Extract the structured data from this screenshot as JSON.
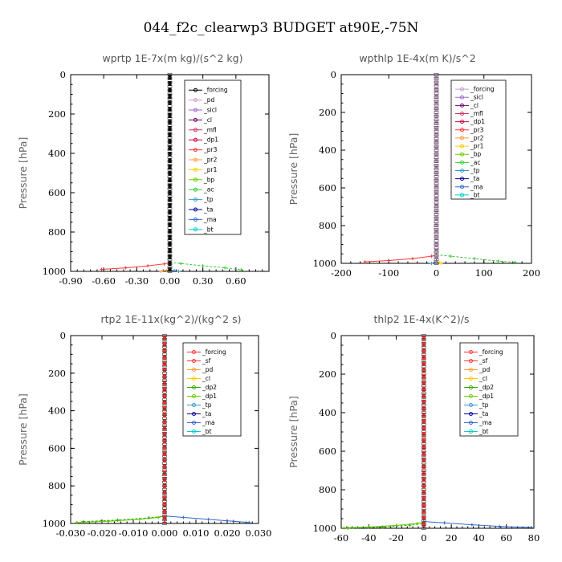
{
  "figure_title": "044_f2c_clearwp3  BUDGET at90E,-75N",
  "chart_data": [
    {
      "type": "line",
      "title": "wprtp   1E-7x(m kg)/(s^2 kg)",
      "ylabel": "Pressure [hPa]",
      "xlim": [
        -0.9,
        0.9
      ],
      "ylim": [
        1000,
        0
      ],
      "xticks": [
        -0.9,
        -0.6,
        -0.3,
        0.0,
        0.3,
        0.6
      ],
      "xtick_labels": [
        "-0.90",
        "-0.60",
        "-0.30",
        "0.00",
        "0.30",
        "0.60"
      ],
      "yticks": [
        0,
        200,
        400,
        600,
        800,
        1000
      ],
      "legend": [
        "_forcing",
        "_pd",
        "_sicl",
        "_cl",
        "_mfl",
        "_dp1",
        "_pr3",
        "_pr2",
        "_pr1",
        "_bp",
        "_ac",
        "_tp",
        "_ta",
        "_ma",
        "_bt"
      ],
      "legend_colors": [
        "#000000",
        "#cc99cc",
        "#9966cc",
        "#660066",
        "#cc3366",
        "#cc0033",
        "#ff3333",
        "#ff9933",
        "#ffcc00",
        "#66cc00",
        "#33cc33",
        "#3399cc",
        "#000099",
        "#3366cc",
        "#00cccc"
      ],
      "series": [
        {
          "name": "_dp1",
          "color": "#ff3333",
          "x": [
            -0.62,
            -0.4,
            -0.2,
            -0.05,
            0.0
          ],
          "y": [
            990,
            982,
            972,
            962,
            955
          ]
        },
        {
          "name": "_ac",
          "color": "#33cc33",
          "x": [
            0.0,
            0.1,
            0.3,
            0.5,
            0.65
          ],
          "y": [
            955,
            960,
            972,
            982,
            992
          ]
        },
        {
          "name": "_pr3",
          "color": "#ff9933",
          "x": [
            -0.08,
            -0.03,
            0.0
          ],
          "y": [
            1000,
            995,
            990
          ]
        },
        {
          "name": "_tp",
          "color": "#3399cc",
          "x": [
            0.0,
            0.04,
            0.08
          ],
          "y": [
            990,
            996,
            1000
          ]
        },
        {
          "name": "_forcing",
          "color": "#000000",
          "x": [
            0.0,
            0.0
          ],
          "y": [
            0,
            1000
          ]
        }
      ]
    },
    {
      "type": "line",
      "title": "wpthlp   1E-4x(m K)/s^2",
      "ylabel": "Pressure [hPa]",
      "xlim": [
        -200,
        200
      ],
      "ylim": [
        1000,
        0
      ],
      "xticks": [
        -200,
        -100,
        0,
        100,
        200
      ],
      "xtick_labels": [
        "-200",
        "-100",
        "0",
        "100",
        "200"
      ],
      "yticks": [
        0,
        200,
        400,
        600,
        800,
        1000
      ],
      "legend": [
        "_forcing",
        "_sicl",
        "_cl",
        "_mfl",
        "_dp1",
        "_pr3",
        "_pr2",
        "_pr1",
        "_bp",
        "_ac",
        "_tp",
        "_ta",
        "_ma",
        "_bt"
      ],
      "legend_colors": [
        "#cc99cc",
        "#9966cc",
        "#660066",
        "#cc3366",
        "#cc0033",
        "#ff3333",
        "#ff9933",
        "#ffcc00",
        "#66cc00",
        "#33cc33",
        "#3399cc",
        "#000099",
        "#3366cc",
        "#00cccc"
      ],
      "series": [
        {
          "name": "_dp1",
          "color": "#ff3333",
          "x": [
            -150,
            -100,
            -50,
            -10,
            0
          ],
          "y": [
            992,
            985,
            975,
            962,
            955
          ]
        },
        {
          "name": "_ac",
          "color": "#33cc33",
          "x": [
            0,
            30,
            80,
            130,
            165
          ],
          "y": [
            955,
            962,
            975,
            988,
            995
          ]
        },
        {
          "name": "_pr3",
          "color": "#ffcc00",
          "x": [
            0,
            6,
            10
          ],
          "y": [
            990,
            996,
            1000
          ]
        },
        {
          "name": "_tp",
          "color": "#3399cc",
          "x": [
            -10,
            -4,
            0
          ],
          "y": [
            1000,
            996,
            990
          ]
        },
        {
          "name": "_forcing",
          "color": "#cc99cc",
          "x": [
            0,
            0
          ],
          "y": [
            0,
            1000
          ]
        }
      ]
    },
    {
      "type": "line",
      "title": "rtp2   1E-11x(kg^2)/(kg^2 s)",
      "ylabel": "Pressure [hPa]",
      "xlim": [
        -0.03,
        0.03
      ],
      "ylim": [
        1000,
        0
      ],
      "xticks": [
        -0.03,
        -0.02,
        -0.01,
        0.0,
        0.01,
        0.02,
        0.03
      ],
      "xtick_labels": [
        "-0.030",
        "-0.020",
        "-0.010",
        "0.000",
        "0.010",
        "0.020",
        "0.030"
      ],
      "yticks": [
        0,
        200,
        400,
        600,
        800,
        1000
      ],
      "legend": [
        "_forcing",
        "_sf",
        "_pd",
        "_cl",
        "_dp2",
        "_dp1",
        "_tp",
        "_ta",
        "_ma",
        "_bt"
      ],
      "legend_colors": [
        "#ff3333",
        "#ff3333",
        "#ff9933",
        "#ffcc00",
        "#33aa00",
        "#66cc00",
        "#3399cc",
        "#000099",
        "#3366cc",
        "#00cccc"
      ],
      "series": [
        {
          "name": "_dp1",
          "color": "#66cc00",
          "x": [
            -0.028,
            -0.018,
            -0.008,
            -0.002,
            0.0
          ],
          "y": [
            995,
            988,
            978,
            968,
            960
          ]
        },
        {
          "name": "_dp2",
          "color": "#33aa00",
          "x": [
            -0.026,
            -0.015,
            -0.005,
            0.0
          ],
          "y": [
            990,
            982,
            970,
            962
          ]
        },
        {
          "name": "_ma",
          "color": "#3366cc",
          "x": [
            0.0,
            0.006,
            0.014,
            0.022,
            0.027
          ],
          "y": [
            960,
            968,
            978,
            988,
            995
          ]
        },
        {
          "name": "_forcing",
          "color": "#ff3333",
          "x": [
            0.0,
            0.0
          ],
          "y": [
            0,
            1000
          ]
        }
      ]
    },
    {
      "type": "line",
      "title": "thlp2   1E-4x(K^2)/s",
      "ylabel": "Pressure [hPa]",
      "xlim": [
        -60,
        80
      ],
      "ylim": [
        1000,
        0
      ],
      "xticks": [
        -60,
        -40,
        -20,
        0,
        20,
        40,
        60,
        80
      ],
      "xtick_labels": [
        "-60",
        "-40",
        "-20",
        "0",
        "20",
        "40",
        "60",
        "80"
      ],
      "yticks": [
        0,
        200,
        400,
        600,
        800,
        1000
      ],
      "legend": [
        "_forcing",
        "_sf",
        "_pd",
        "_cl",
        "_dp2",
        "_dp1",
        "_tp",
        "_ta",
        "_ma",
        "_bt"
      ],
      "legend_colors": [
        "#ff3333",
        "#ff3333",
        "#ff9933",
        "#ffcc00",
        "#33aa00",
        "#66cc00",
        "#3399cc",
        "#000099",
        "#3366cc",
        "#00cccc"
      ],
      "series": [
        {
          "name": "_dp1",
          "color": "#66cc00",
          "x": [
            -58,
            -40,
            -20,
            -5,
            0
          ],
          "y": [
            998,
            993,
            985,
            975,
            968
          ]
        },
        {
          "name": "_dp2",
          "color": "#33aa00",
          "x": [
            -55,
            -30,
            -10,
            0
          ],
          "y": [
            1000,
            994,
            984,
            975
          ]
        },
        {
          "name": "_ma",
          "color": "#3366cc",
          "x": [
            0,
            15,
            35,
            55,
            78
          ],
          "y": [
            965,
            972,
            982,
            990,
            996
          ]
        },
        {
          "name": "_forcing",
          "color": "#ff3333",
          "x": [
            0,
            0
          ],
          "y": [
            0,
            1000
          ]
        }
      ]
    }
  ]
}
